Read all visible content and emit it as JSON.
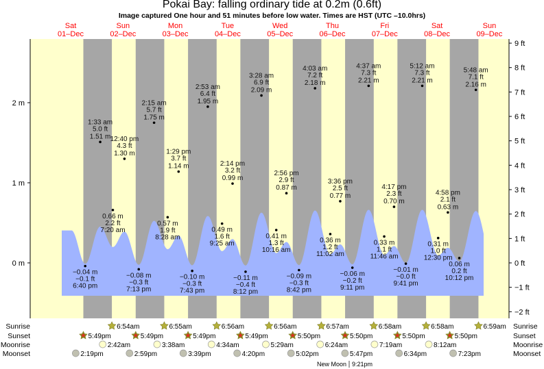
{
  "title": "Pokai Bay: falling  ordinary tide at 0.2m (0.6ft)",
  "subtitle": "Image captured One hour and 51 minutes before low water. Times are HST (UTC –10.0hrs)",
  "colors": {
    "day": "#ffffcc",
    "night": "#a6a6a6",
    "water": "#a0b4ff",
    "day_label": "#ff0000"
  },
  "chart_data": {
    "type": "area",
    "days": [
      {
        "dow": "Sat",
        "date": "01–Dec"
      },
      {
        "dow": "Sun",
        "date": "02–Dec"
      },
      {
        "dow": "Mon",
        "date": "03–Dec"
      },
      {
        "dow": "Tue",
        "date": "04–Dec"
      },
      {
        "dow": "Wed",
        "date": "05–Dec"
      },
      {
        "dow": "Thu",
        "date": "06–Dec"
      },
      {
        "dow": "Fri",
        "date": "07–Dec"
      },
      {
        "dow": "Sat",
        "date": "08–Dec"
      },
      {
        "dow": "Sun",
        "date": "09–Dec"
      }
    ],
    "left_axis": {
      "ticks": [
        "0 m",
        "1 m",
        "2 m"
      ],
      "values": [
        0,
        1,
        2
      ]
    },
    "right_axis": {
      "ticks": [
        "−2 ft",
        "−1 ft",
        "0 ft",
        "1 ft",
        "2 ft",
        "3 ft",
        "4 ft",
        "5 ft",
        "6 ft",
        "7 ft",
        "8 ft",
        "9 ft"
      ],
      "values": [
        -2,
        -1,
        0,
        1,
        2,
        3,
        4,
        5,
        6,
        7,
        8,
        9
      ]
    },
    "ylim_m": [
      -0.6,
      2.8
    ],
    "extremes": [
      {
        "day": 0,
        "time": "6:40 pm",
        "m": -0.04,
        "m_label": "−0.04 m",
        "ft": "−0.1 ft",
        "type": "low"
      },
      {
        "day": 1,
        "time": "1:33 am",
        "m": 1.51,
        "m_label": "1.51 m",
        "ft": "5.0 ft",
        "type": "high"
      },
      {
        "day": 1,
        "time": "7:20 am",
        "m": 0.66,
        "m_label": "0.66 m",
        "ft": "2.2 ft",
        "type": "low"
      },
      {
        "day": 1,
        "time": "12:40 pm",
        "m": 1.3,
        "m_label": "1.30 m",
        "ft": "4.3 ft",
        "type": "high"
      },
      {
        "day": 1,
        "time": "7:13 pm",
        "m": -0.08,
        "m_label": "−0.08 m",
        "ft": "−0.3 ft",
        "type": "low"
      },
      {
        "day": 2,
        "time": "2:15 am",
        "m": 1.75,
        "m_label": "1.75 m",
        "ft": "5.7 ft",
        "type": "high"
      },
      {
        "day": 2,
        "time": "8:28 am",
        "m": 0.57,
        "m_label": "0.57 m",
        "ft": "1.9 ft",
        "type": "low"
      },
      {
        "day": 2,
        "time": "1:29 pm",
        "m": 1.14,
        "m_label": "1.14 m",
        "ft": "3.7 ft",
        "type": "high"
      },
      {
        "day": 2,
        "time": "7:43 pm",
        "m": -0.1,
        "m_label": "−0.10 m",
        "ft": "−0.3 ft",
        "type": "low"
      },
      {
        "day": 3,
        "time": "2:53 am",
        "m": 1.95,
        "m_label": "1.95 m",
        "ft": "6.4 ft",
        "type": "high"
      },
      {
        "day": 3,
        "time": "9:25 am",
        "m": 0.49,
        "m_label": "0.49 m",
        "ft": "1.6 ft",
        "type": "low"
      },
      {
        "day": 3,
        "time": "2:14 pm",
        "m": 0.99,
        "m_label": "0.99 m",
        "ft": "3.2 ft",
        "type": "high"
      },
      {
        "day": 3,
        "time": "8:12 pm",
        "m": -0.11,
        "m_label": "−0.11 m",
        "ft": "−0.4 ft",
        "type": "low"
      },
      {
        "day": 4,
        "time": "3:28 am",
        "m": 2.09,
        "m_label": "2.09 m",
        "ft": "6.9 ft",
        "type": "high"
      },
      {
        "day": 4,
        "time": "10:16 am",
        "m": 0.41,
        "m_label": "0.41 m",
        "ft": "1.3 ft",
        "type": "low"
      },
      {
        "day": 4,
        "time": "2:56 pm",
        "m": 0.87,
        "m_label": "0.87 m",
        "ft": "2.9 ft",
        "type": "high"
      },
      {
        "day": 4,
        "time": "8:42 pm",
        "m": -0.09,
        "m_label": "−0.09 m",
        "ft": "−0.3 ft",
        "type": "low"
      },
      {
        "day": 5,
        "time": "4:03 am",
        "m": 2.18,
        "m_label": "2.18 m",
        "ft": "7.2 ft",
        "type": "high"
      },
      {
        "day": 5,
        "time": "11:02 am",
        "m": 0.36,
        "m_label": "0.36 m",
        "ft": "1.2 ft",
        "type": "low"
      },
      {
        "day": 5,
        "time": "3:36 pm",
        "m": 0.77,
        "m_label": "0.77 m",
        "ft": "2.5 ft",
        "type": "high"
      },
      {
        "day": 5,
        "time": "9:11 pm",
        "m": -0.06,
        "m_label": "−0.06 m",
        "ft": "−0.2 ft",
        "type": "low"
      },
      {
        "day": 6,
        "time": "4:37 am",
        "m": 2.21,
        "m_label": "2.21 m",
        "ft": "7.3 ft",
        "type": "high"
      },
      {
        "day": 6,
        "time": "11:46 am",
        "m": 0.33,
        "m_label": "0.33 m",
        "ft": "1.1 ft",
        "type": "low"
      },
      {
        "day": 6,
        "time": "4:17 pm",
        "m": 0.7,
        "m_label": "0.70 m",
        "ft": "2.3 ft",
        "type": "high"
      },
      {
        "day": 6,
        "time": "9:41 pm",
        "m": -0.01,
        "m_label": "−0.01 m",
        "ft": "−0.0 ft",
        "type": "low"
      },
      {
        "day": 7,
        "time": "5:12 am",
        "m": 2.21,
        "m_label": "2.21 m",
        "ft": "7.3 ft",
        "type": "high"
      },
      {
        "day": 7,
        "time": "12:30 pm",
        "m": 0.31,
        "m_label": "0.31 m",
        "ft": "1.0 ft",
        "type": "low"
      },
      {
        "day": 7,
        "time": "4:58 pm",
        "m": 0.63,
        "m_label": "0.63 m",
        "ft": "2.1 ft",
        "type": "high"
      },
      {
        "day": 7,
        "time": "10:12 pm",
        "m": 0.06,
        "m_label": "0.06 m",
        "ft": "0.2 ft",
        "type": "low"
      },
      {
        "day": 8,
        "time": "5:48 am",
        "m": 2.16,
        "m_label": "2.16 m",
        "ft": "7.1 ft",
        "type": "high"
      }
    ]
  },
  "astro": {
    "labels": {
      "sunrise": "Sunrise",
      "sunset": "Sunset",
      "moonrise": "Moonrise",
      "moonset": "Moonset"
    },
    "sunrise": [
      {
        "day": 1,
        "t": "6:54am"
      },
      {
        "day": 2,
        "t": "6:55am"
      },
      {
        "day": 3,
        "t": "6:56am"
      },
      {
        "day": 4,
        "t": "6:56am"
      },
      {
        "day": 5,
        "t": "6:57am"
      },
      {
        "day": 6,
        "t": "6:58am"
      },
      {
        "day": 7,
        "t": "6:58am"
      },
      {
        "day": 8,
        "t": "6:59am"
      }
    ],
    "sunset": [
      {
        "day": 0,
        "t": "5:49pm"
      },
      {
        "day": 1,
        "t": "5:49pm"
      },
      {
        "day": 2,
        "t": "5:49pm"
      },
      {
        "day": 3,
        "t": "5:49pm"
      },
      {
        "day": 4,
        "t": "5:50pm"
      },
      {
        "day": 5,
        "t": "5:50pm"
      },
      {
        "day": 6,
        "t": "5:50pm"
      },
      {
        "day": 7,
        "t": "5:50pm"
      }
    ],
    "moonrise": [
      {
        "day": 1,
        "t": "2:42am"
      },
      {
        "day": 2,
        "t": "3:38am"
      },
      {
        "day": 3,
        "t": "4:34am"
      },
      {
        "day": 4,
        "t": "5:29am"
      },
      {
        "day": 5,
        "t": "6:24am"
      },
      {
        "day": 6,
        "t": "7:19am"
      },
      {
        "day": 7,
        "t": "8:12am"
      }
    ],
    "moonset": [
      {
        "day": 0,
        "t": "2:19pm"
      },
      {
        "day": 1,
        "t": "2:59pm"
      },
      {
        "day": 2,
        "t": "3:39pm"
      },
      {
        "day": 3,
        "t": "4:20pm"
      },
      {
        "day": 4,
        "t": "5:02pm"
      },
      {
        "day": 5,
        "t": "5:47pm"
      },
      {
        "day": 6,
        "t": "6:34pm"
      },
      {
        "day": 7,
        "t": "7:23pm"
      }
    ],
    "moon_phase": {
      "label": "New Moon",
      "time": "9:21pm"
    }
  }
}
